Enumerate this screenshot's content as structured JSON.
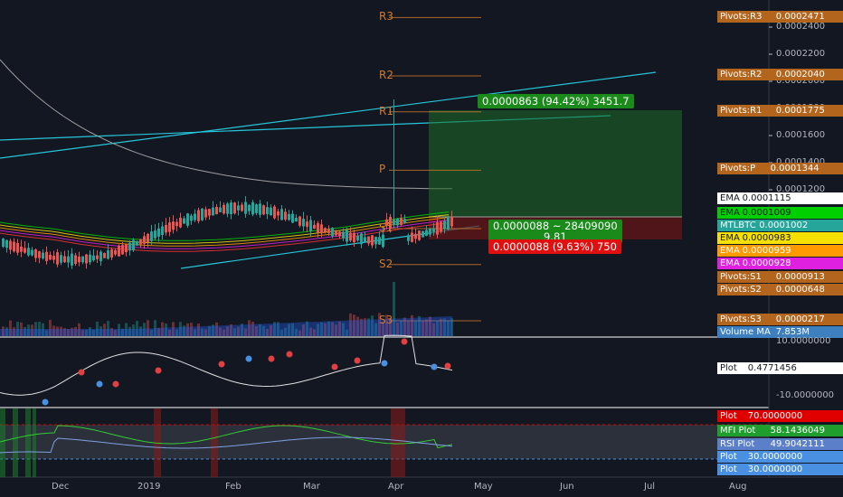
{
  "chart_data": {
    "type": "candlestick",
    "symbol": "MTLBTC",
    "x_ticks": [
      "Dec",
      "2019",
      "Feb",
      "Mar",
      "Apr",
      "May",
      "Jun",
      "Jul",
      "Aug"
    ],
    "price_ticks": [
      "0.0002400",
      "0.0002200",
      "0.0002000",
      "0.0001800",
      "0.0001600",
      "0.0001400",
      "0.0001200"
    ],
    "price_range": [
      6e-05,
      0.00026
    ],
    "pivots": [
      {
        "name": "R3",
        "label": "Pivots:R3",
        "value": "0.0002471",
        "v": 0.0002471
      },
      {
        "name": "R2",
        "label": "Pivots:R2",
        "value": "0.0002040",
        "v": 0.000204
      },
      {
        "name": "R1",
        "label": "Pivots:R1",
        "value": "0.0001775",
        "v": 0.0001775
      },
      {
        "name": "P",
        "label": "Pivots:P",
        "value": "0.0001344",
        "v": 0.0001344
      },
      {
        "name": "S1",
        "label": "Pivots:S1",
        "value": "0.0000913",
        "v": 9.13e-05
      },
      {
        "name": "S2",
        "label": "Pivots:S2",
        "value": "0.0000648",
        "v": 6.48e-05
      },
      {
        "name": "S3",
        "label": "Pivots:S3",
        "value": "0.0000217",
        "v": 2.17e-05
      }
    ],
    "ema_labels": [
      {
        "label": "EMA",
        "value": "0.0001115",
        "color": "#ffffff",
        "text": "#131722"
      },
      {
        "label": "EMA",
        "value": "0.0001009",
        "color": "#00d000",
        "text": "#131722"
      },
      {
        "label": "MTLBTC",
        "value": "0.0001002",
        "color": "#26a69a",
        "text": "#ffffff"
      },
      {
        "label": "EMA",
        "value": "0.0000983",
        "color": "#f5e000",
        "text": "#131722"
      },
      {
        "label": "EMA",
        "value": "0.0000959",
        "color": "#ff9a00",
        "text": "#ffffff"
      },
      {
        "label": "EMA",
        "value": "0.0000928",
        "color": "#e020e0",
        "text": "#ffffff"
      }
    ],
    "volume_label": {
      "label": "Volume MA",
      "value": "7.853M"
    },
    "position": {
      "target_text": "0.0000863 (94.42%) 3451.7",
      "mid_text_1": "0.0000088 ~ 28409090",
      "mid_text_2": "9.81",
      "stop_text": "0.0000088 (9.63%) 750"
    },
    "oscillator": {
      "ticks": [
        "10.0000000",
        "-10.0000000"
      ],
      "plot_label": "Plot",
      "plot_value": "0.4771456"
    },
    "rsi_panel": {
      "labels": [
        {
          "label": "Plot",
          "value": "70.0000000",
          "color": "#e00000"
        },
        {
          "label": "MFI Plot",
          "value": "58.1436049",
          "color": "#1f9e2e"
        },
        {
          "label": "RSI Plot",
          "value": "49.9042111",
          "color": "#5b7fc8"
        },
        {
          "label": "Plot",
          "value": "30.0000000",
          "color": "#4a90e2"
        },
        {
          "label": "Plot",
          "value": "30.0000000",
          "color": "#4a90e2"
        }
      ]
    }
  }
}
